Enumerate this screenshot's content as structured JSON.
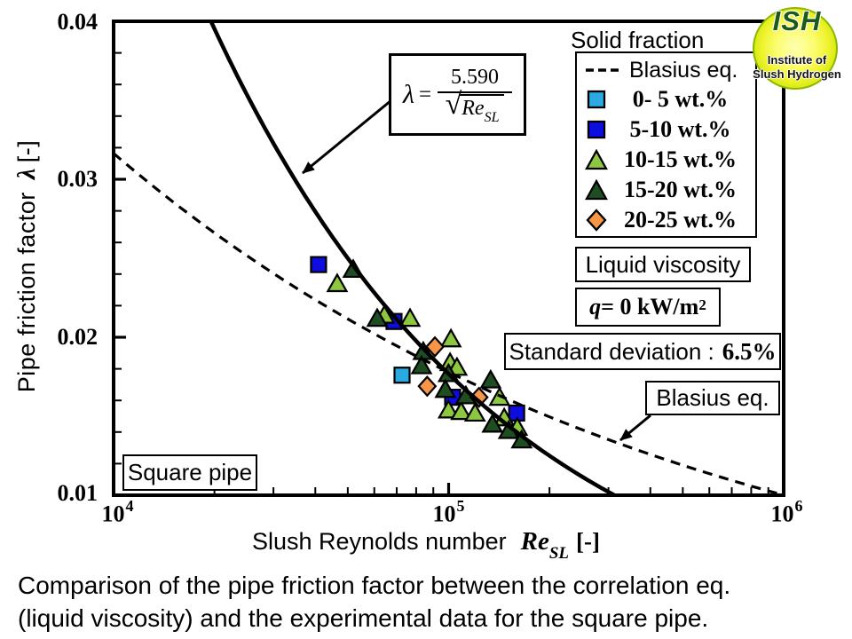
{
  "logo": {
    "acronym": "ISH",
    "line1": "Institute of",
    "line2": "Slush Hydrogen"
  },
  "axes": {
    "y_title_prefix": "Pipe friction factor",
    "y_title_symbol": "λ",
    "y_title_unit": "[-]",
    "x_title_prefix": "Slush Reynolds number",
    "x_title_symbol": "Re",
    "x_title_sub": "SL",
    "x_title_unit": "[-]",
    "y_ticks": [
      "0.04",
      "0.03",
      "0.02",
      "0.01"
    ],
    "x_ticks": [
      {
        "base": "10",
        "exp": "4"
      },
      {
        "base": "10",
        "exp": "5"
      },
      {
        "base": "10",
        "exp": "6"
      }
    ]
  },
  "equation": {
    "symbol": "λ",
    "equals": "=",
    "numerator": "5.590",
    "radical": "√",
    "radicand": "Re",
    "radicand_sub": "SL"
  },
  "legend": {
    "title": "Solid fraction",
    "line_label": "Blasius eq."
  },
  "annotations": {
    "liquid_viscosity": "Liquid viscosity",
    "q_symbol": "q",
    "q_rest": " = 0 kW/m",
    "q_sup": "2",
    "std_label": "Standard deviation :",
    "std_value": "6.5%",
    "blasius_label": "Blasius eq.",
    "square_pipe": "Square pipe"
  },
  "caption": {
    "line1": "Comparison of the pipe friction factor between the correlation eq.",
    "line2": "(liquid viscosity) and the experimental data for the square pipe."
  },
  "chart_data": {
    "type": "scatter",
    "x_axis": {
      "label": "Slush Reynolds number Re_SL [-]",
      "scale": "log",
      "min": 10000,
      "max": 1000000
    },
    "y_axis": {
      "label": "Pipe friction factor λ [-]",
      "scale": "linear",
      "min": 0.01,
      "max": 0.04,
      "major_step": 0.01,
      "minor_step": 0.002
    },
    "curves": [
      {
        "name": "Correlation eq. (liquid viscosity)",
        "equation": "λ = 5.590/√Re_SL",
        "coef": 5.59,
        "exponent": -0.5,
        "style": "solid"
      },
      {
        "name": "Blasius eq.",
        "equation": "λ = 0.3164/Re^0.25",
        "coef": 0.3164,
        "exponent": -0.25,
        "style": "dashed"
      }
    ],
    "series": [
      {
        "name": "0- 5 wt.%",
        "marker": "square",
        "color": "#29abe2",
        "points": [
          [
            72600,
            0.0176
          ]
        ]
      },
      {
        "name": "5-10 wt.%",
        "marker": "square",
        "color": "#0d0de0",
        "points": [
          [
            40900,
            0.0246
          ],
          [
            68700,
            0.021
          ],
          [
            102800,
            0.0162
          ],
          [
            159600,
            0.0152
          ]
        ]
      },
      {
        "name": "10-15 wt.%",
        "marker": "triangle",
        "color": "#8dc63f",
        "points": [
          [
            46500,
            0.0234
          ],
          [
            64300,
            0.0214
          ],
          [
            76700,
            0.0212
          ],
          [
            101600,
            0.0199
          ],
          [
            101000,
            0.0184
          ],
          [
            105900,
            0.0181
          ],
          [
            99900,
            0.0154
          ],
          [
            109000,
            0.0153
          ],
          [
            119900,
            0.0152
          ],
          [
            141900,
            0.0162
          ],
          [
            146500,
            0.0149
          ],
          [
            160300,
            0.0143
          ]
        ]
      },
      {
        "name": "15-20 wt.%",
        "marker": "triangle",
        "color": "#1e4d22",
        "points": [
          [
            51900,
            0.0243
          ],
          [
            61200,
            0.0212
          ],
          [
            84000,
            0.0191
          ],
          [
            83000,
            0.0182
          ],
          [
            99900,
            0.0177
          ],
          [
            97800,
            0.0167
          ],
          [
            112600,
            0.0163
          ],
          [
            133500,
            0.0173
          ],
          [
            135100,
            0.0145
          ],
          [
            151100,
            0.0141
          ],
          [
            165200,
            0.0135
          ]
        ]
      },
      {
        "name": "20-25 wt.%",
        "marker": "diamond",
        "color": "#f79646",
        "points": [
          [
            91000,
            0.0194
          ],
          [
            86300,
            0.0169
          ],
          [
            123200,
            0.0162
          ]
        ]
      }
    ]
  }
}
